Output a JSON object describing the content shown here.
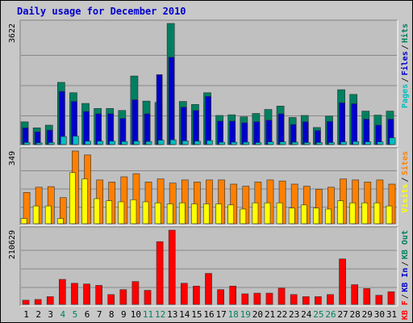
{
  "chart_data": {
    "title": "Daily usage for December 2010",
    "categories": [
      "1",
      "2",
      "3",
      "4",
      "5",
      "6",
      "7",
      "8",
      "9",
      "10",
      "11",
      "12",
      "13",
      "14",
      "15",
      "16",
      "17",
      "18",
      "19",
      "20",
      "21",
      "22",
      "23",
      "24",
      "25",
      "26",
      "27",
      "28",
      "29",
      "30",
      "31"
    ],
    "weekend_days": [
      "4",
      "5",
      "11",
      "12",
      "18",
      "19",
      "25",
      "26"
    ],
    "panels": [
      {
        "type": "bar",
        "max_label": "3622",
        "ylim": [
          0,
          3622
        ],
        "legend": [
          {
            "text": "Pages",
            "color": "#00bfbf"
          },
          {
            "text": "Files",
            "color": "#0000cc"
          },
          {
            "text": "Hits",
            "color": "#008060"
          }
        ],
        "series": [
          {
            "name": "Hits",
            "color": "#008060",
            "values": [
              680,
              500,
              580,
              1860,
              1550,
              1230,
              1080,
              1080,
              1020,
              2050,
              1300,
              1260,
              3622,
              1290,
              1200,
              1550,
              870,
              890,
              830,
              930,
              1050,
              1150,
              810,
              870,
              510,
              850,
              1640,
              1500,
              1000,
              880,
              1000
            ]
          },
          {
            "name": "Files",
            "color": "#0000cc",
            "values": [
              500,
              380,
              430,
              1590,
              1290,
              990,
              920,
              920,
              780,
              1340,
              920,
              2090,
              2610,
              1120,
              1020,
              1440,
              700,
              700,
              650,
              680,
              730,
              920,
              600,
              680,
              420,
              690,
              1250,
              1220,
              760,
              580,
              760
            ]
          },
          {
            "name": "Pages",
            "color": "#00bfbf",
            "values": [
              60,
              50,
              60,
              240,
              250,
              100,
              100,
              100,
              90,
              100,
              90,
              130,
              140,
              110,
              100,
              120,
              70,
              70,
              70,
              60,
              80,
              80,
              70,
              60,
              60,
              60,
              80,
              90,
              80,
              80,
              200
            ]
          }
        ]
      },
      {
        "type": "bar",
        "max_label": "349",
        "ylim": [
          0,
          349
        ],
        "legend": [
          {
            "text": "Visits",
            "color": "#ffff00"
          },
          {
            "text": "Sites",
            "color": "#ff8000"
          }
        ],
        "series": [
          {
            "name": "Sites",
            "color": "#ff8000",
            "values": [
              150,
              175,
              178,
              125,
              349,
              330,
              210,
              200,
              225,
              240,
              200,
              215,
              195,
              210,
              200,
              210,
              210,
              190,
              180,
              200,
              210,
              205,
              190,
              180,
              165,
              175,
              215,
              210,
              200,
              210,
              190
            ]
          },
          {
            "name": "Visits",
            "color": "#ffff00",
            "values": [
              25,
              85,
              85,
              25,
              245,
              215,
              120,
              110,
              105,
              115,
              105,
              100,
              95,
              100,
              95,
              95,
              95,
              90,
              70,
              100,
              100,
              100,
              75,
              90,
              75,
              70,
              110,
              100,
              100,
              100,
              85
            ]
          }
        ]
      },
      {
        "type": "bar",
        "max_label": "210629",
        "ylim": [
          0,
          210629
        ],
        "legend": [
          {
            "text": "KB F",
            "color": "#ff0000"
          },
          {
            "text": "KB In",
            "color": "#0000cc"
          },
          {
            "text": "KB Out",
            "color": "#008060"
          }
        ],
        "series": [
          {
            "name": "KB F",
            "color": "#ff0000",
            "values": [
              12000,
              14000,
              22000,
              71000,
              60000,
              58000,
              54000,
              28000,
              42000,
              65000,
              40000,
              178000,
              210629,
              60000,
              52000,
              88000,
              42000,
              52000,
              30000,
              32000,
              32000,
              46000,
              28000,
              22000,
              22000,
              28000,
              129000,
              56000,
              45000,
              26000,
              36000
            ]
          }
        ]
      }
    ]
  }
}
